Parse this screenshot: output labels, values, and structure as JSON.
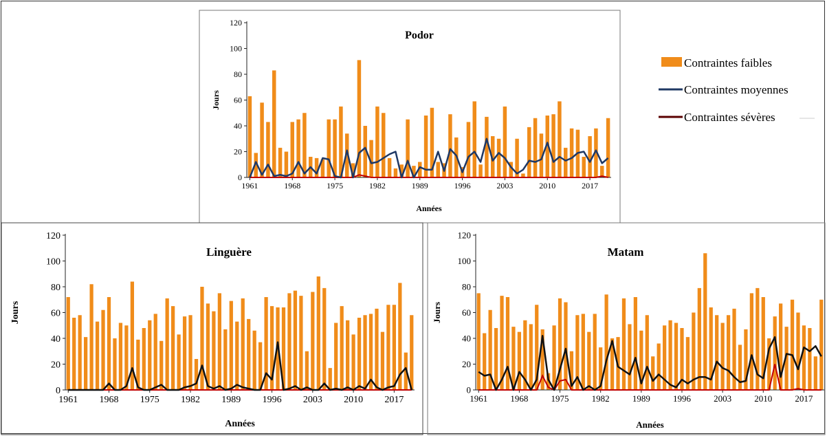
{
  "legend": {
    "items": [
      {
        "label": "Contraintes faibles",
        "color": "#f08c1a",
        "kind": "bar"
      },
      {
        "label": "Contraintes moyennes",
        "color": "#1f3864",
        "kind": "line"
      },
      {
        "label": "Contraintes sévères",
        "color": "#5a0000",
        "kind": "line"
      }
    ]
  },
  "chart_data": [
    {
      "type": "bar",
      "title": "Podor",
      "xlabel": "Années",
      "ylabel": "Jours",
      "ylim": [
        0,
        120
      ],
      "yticks": [
        0,
        20,
        40,
        60,
        80,
        100,
        120
      ],
      "xticks": [
        1961,
        1968,
        1975,
        1982,
        1989,
        1996,
        2003,
        2010,
        2017
      ],
      "x_start": 1961,
      "x_end": 2020,
      "bar_color": "#f08c1a",
      "moy_color": "#1f3864",
      "sev_color": "#c00000",
      "series": [
        {
          "name": "Contraintes faibles",
          "values": [
            63,
            19,
            58,
            43,
            83,
            23,
            20,
            43,
            45,
            50,
            16,
            15,
            14,
            45,
            45,
            55,
            34,
            11,
            91,
            40,
            29,
            55,
            50,
            15,
            7,
            10,
            45,
            9,
            12,
            48,
            54,
            12,
            11,
            49,
            31,
            8,
            43,
            59,
            10,
            47,
            32,
            30,
            55,
            12,
            30,
            3,
            39,
            46,
            34,
            48,
            49,
            59,
            23,
            38,
            37,
            16,
            32,
            38,
            9,
            46
          ]
        },
        {
          "name": "Contraintes moyennes",
          "values": [
            0,
            12,
            2,
            10,
            1,
            2,
            1,
            3,
            12,
            3,
            8,
            3,
            15,
            14,
            1,
            0,
            21,
            0,
            19,
            23,
            11,
            12,
            15,
            18,
            20,
            0,
            13,
            0,
            8,
            6,
            6,
            20,
            5,
            22,
            17,
            4,
            16,
            20,
            12,
            30,
            13,
            19,
            15,
            8,
            3,
            6,
            13,
            12,
            14,
            27,
            12,
            16,
            13,
            15,
            19,
            20,
            12,
            21,
            11,
            15
          ]
        },
        {
          "name": "Contraintes sévères",
          "values": [
            0,
            0,
            0,
            0,
            0,
            0,
            0,
            0,
            0,
            0,
            0,
            0,
            0,
            0,
            0,
            0,
            0,
            0,
            2,
            1,
            0,
            0,
            0,
            0,
            0,
            0,
            0,
            0,
            0,
            0,
            0,
            0,
            0,
            0,
            0,
            0,
            0,
            0,
            0,
            0,
            0,
            0,
            0,
            0,
            0,
            0,
            0,
            0,
            0,
            0,
            0,
            0,
            0,
            0,
            0,
            0,
            0,
            0,
            1,
            0
          ]
        }
      ]
    },
    {
      "type": "bar",
      "title": "Linguère",
      "xlabel": "Années",
      "ylabel": "Jours",
      "ylim": [
        0,
        120
      ],
      "yticks": [
        0,
        20,
        40,
        60,
        80,
        100,
        120
      ],
      "xticks": [
        1961,
        1968,
        1975,
        1982,
        1989,
        1996,
        2003,
        2010,
        2017
      ],
      "x_start": 1961,
      "x_end": 2020,
      "bar_color": "#f08c1a",
      "moy_color": "#111111",
      "sev_color": "#c00000",
      "series": [
        {
          "name": "Contraintes faibles",
          "values": [
            72,
            56,
            58,
            41,
            82,
            53,
            62,
            72,
            40,
            52,
            50,
            84,
            39,
            48,
            54,
            59,
            38,
            71,
            65,
            43,
            57,
            58,
            24,
            80,
            67,
            61,
            75,
            47,
            69,
            53,
            71,
            55,
            46,
            37,
            72,
            65,
            64,
            64,
            75,
            77,
            73,
            30,
            76,
            88,
            79,
            17,
            52,
            65,
            54,
            43,
            56,
            58,
            59,
            63,
            45,
            66,
            66,
            83,
            29,
            58
          ]
        },
        {
          "name": "Contraintes moyennes",
          "values": [
            0,
            0,
            0,
            0,
            0,
            0,
            0,
            5,
            0,
            0,
            3,
            17,
            2,
            0,
            0,
            2,
            4,
            0,
            0,
            0,
            2,
            3,
            5,
            19,
            3,
            1,
            3,
            0,
            1,
            4,
            2,
            1,
            0,
            0,
            13,
            8,
            37,
            0,
            1,
            3,
            0,
            2,
            0,
            0,
            5,
            0,
            1,
            0,
            2,
            0,
            3,
            1,
            8,
            2,
            0,
            2,
            3,
            12,
            17,
            0
          ]
        },
        {
          "name": "Contraintes sévères",
          "values": [
            0,
            0,
            0,
            0,
            0,
            0,
            0,
            0,
            0,
            0,
            0,
            0,
            0,
            0,
            0,
            0,
            0,
            0,
            0,
            0,
            0,
            0,
            0,
            0,
            0,
            0,
            0,
            0,
            0,
            0,
            0,
            0,
            0,
            0,
            0,
            0,
            0,
            0,
            0,
            0,
            0,
            0,
            0,
            0,
            0,
            0,
            0,
            0,
            0,
            0,
            0,
            0,
            0,
            0,
            0,
            0,
            0,
            0,
            0,
            0
          ]
        }
      ]
    },
    {
      "type": "bar",
      "title": "Matam",
      "xlabel": "Années",
      "ylabel": "Jours",
      "ylim": [
        0,
        120
      ],
      "yticks": [
        0,
        20,
        40,
        60,
        80,
        100,
        120
      ],
      "xticks": [
        1961,
        1968,
        1975,
        1982,
        1989,
        1996,
        2003,
        2010,
        2017
      ],
      "x_start": 1961,
      "x_end": 2020,
      "bar_color": "#f08c1a",
      "moy_color": "#111111",
      "sev_color": "#c00000",
      "series": [
        {
          "name": "Contraintes faibles",
          "values": [
            75,
            44,
            62,
            48,
            73,
            72,
            49,
            45,
            54,
            51,
            66,
            47,
            13,
            50,
            71,
            68,
            30,
            58,
            59,
            45,
            59,
            33,
            74,
            40,
            41,
            71,
            51,
            72,
            46,
            58,
            26,
            36,
            50,
            54,
            52,
            48,
            41,
            60,
            79,
            106,
            64,
            58,
            52,
            58,
            63,
            35,
            47,
            75,
            79,
            72,
            40,
            57,
            67,
            49,
            70,
            60,
            50,
            48,
            26,
            70
          ]
        },
        {
          "name": "Contraintes moyennes",
          "values": [
            14,
            11,
            12,
            0,
            8,
            18,
            0,
            14,
            8,
            0,
            8,
            42,
            8,
            0,
            16,
            32,
            3,
            10,
            0,
            3,
            0,
            3,
            23,
            38,
            18,
            15,
            12,
            25,
            5,
            18,
            7,
            12,
            8,
            4,
            2,
            8,
            5,
            8,
            10,
            10,
            8,
            22,
            17,
            15,
            10,
            6,
            7,
            27,
            12,
            9,
            32,
            41,
            10,
            28,
            27,
            16,
            33,
            30,
            34,
            26
          ]
        },
        {
          "name": "Contraintes sévères",
          "values": [
            0,
            0,
            0,
            0,
            0,
            0,
            0,
            0,
            0,
            0,
            0,
            11,
            2,
            0,
            7,
            8,
            0,
            0,
            0,
            0,
            0,
            0,
            0,
            0,
            0,
            0,
            0,
            0,
            0,
            0,
            0,
            0,
            0,
            0,
            0,
            0,
            0,
            0,
            0,
            0,
            0,
            0,
            0,
            0,
            0,
            0,
            0,
            0,
            0,
            0,
            0,
            20,
            0,
            0,
            0,
            1,
            0,
            0,
            0,
            0
          ]
        }
      ]
    }
  ]
}
